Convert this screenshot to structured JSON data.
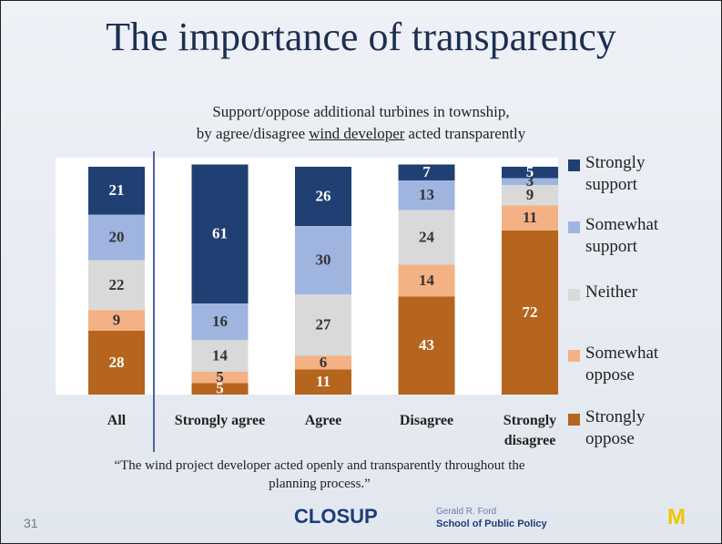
{
  "chart_data": {
    "type": "stacked_bar",
    "title": "The importance of transparency",
    "subtitle": {
      "line1": "Support/oppose additional turbines in township,",
      "line2_before": "by agree/disagree",
      "line2_underlined": "wind developer",
      "line2_after": "acted transparently"
    },
    "categories": [
      "All",
      "Strongly agree",
      "Agree",
      "Disagree",
      "Strongly disagree"
    ],
    "series": [
      {
        "name": "Strongly support",
        "color": "#203f73",
        "values": [
          21,
          61,
          26,
          7,
          5
        ]
      },
      {
        "name": "Somewhat support",
        "color": "#9fb5e0",
        "values": [
          20,
          16,
          30,
          13,
          3
        ]
      },
      {
        "name": "Neither",
        "color": "#d9d9d9",
        "values": [
          22,
          14,
          27,
          24,
          9
        ]
      },
      {
        "name": "Somewhat oppose",
        "color": "#f4b183",
        "values": [
          9,
          5,
          6,
          14,
          11
        ]
      },
      {
        "name": "Strongly oppose",
        "color": "#b5651d",
        "values": [
          28,
          5,
          11,
          43,
          72
        ]
      }
    ],
    "ylim": [
      0,
      100
    ],
    "legend": "right",
    "note": "“The wind project developer acted openly and transparently throughout the planning process.”"
  },
  "slide": {
    "page_number": "31",
    "logos": {
      "closup": "CLOSUP",
      "ford_top": "Gerald R. Ford",
      "ford_bottom": "School of Public Policy",
      "michigan": "M"
    }
  }
}
